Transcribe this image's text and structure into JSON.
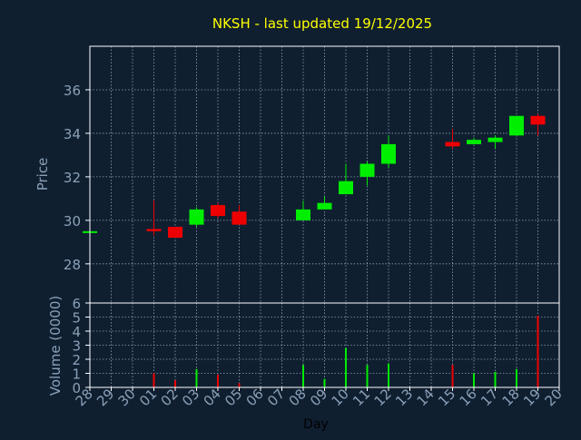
{
  "chart_data": {
    "type": "candlestick",
    "title": "NKSH - last updated 19/12/2025",
    "xlabel": "Day",
    "colors": {
      "background": "#0f1f30",
      "title": "#ffff00",
      "axis_text": "#8aa0b8",
      "frame": "#ffffff",
      "up": "#00ee00",
      "down": "#ee0000"
    },
    "categories": [
      "28",
      "29",
      "30",
      "01",
      "02",
      "03",
      "04",
      "05",
      "06",
      "07",
      "08",
      "09",
      "10",
      "11",
      "12",
      "13",
      "14",
      "15",
      "16",
      "17",
      "18",
      "19",
      "20"
    ],
    "price_panel": {
      "ylabel": "Price",
      "ylim": [
        26.2,
        38
      ],
      "yticks": [
        28,
        30,
        32,
        34,
        36
      ],
      "grid": true,
      "candles": [
        {
          "day": "28",
          "open": 29.5,
          "high": 29.5,
          "low": 29.5,
          "close": 29.5
        },
        {
          "day": "01",
          "open": 29.6,
          "high": 30.9,
          "low": 29.3,
          "close": 29.5
        },
        {
          "day": "02",
          "open": 29.7,
          "high": 29.7,
          "low": 29.2,
          "close": 29.2
        },
        {
          "day": "03",
          "open": 29.8,
          "high": 30.6,
          "low": 29.7,
          "close": 30.5
        },
        {
          "day": "04",
          "open": 30.7,
          "high": 30.8,
          "low": 30.1,
          "close": 30.2
        },
        {
          "day": "05",
          "open": 30.4,
          "high": 30.7,
          "low": 29.8,
          "close": 29.8
        },
        {
          "day": "08",
          "open": 30.0,
          "high": 30.9,
          "low": 30.0,
          "close": 30.5
        },
        {
          "day": "09",
          "open": 30.5,
          "high": 31.1,
          "low": 30.5,
          "close": 30.8
        },
        {
          "day": "10",
          "open": 31.2,
          "high": 32.6,
          "low": 31.2,
          "close": 31.8
        },
        {
          "day": "11",
          "open": 32.0,
          "high": 32.7,
          "low": 31.6,
          "close": 32.6
        },
        {
          "day": "12",
          "open": 32.6,
          "high": 33.9,
          "low": 32.4,
          "close": 33.5
        },
        {
          "day": "15",
          "open": 33.6,
          "high": 34.2,
          "low": 33.3,
          "close": 33.4
        },
        {
          "day": "16",
          "open": 33.5,
          "high": 33.8,
          "low": 33.5,
          "close": 33.7
        },
        {
          "day": "17",
          "open": 33.6,
          "high": 33.9,
          "low": 33.3,
          "close": 33.8
        },
        {
          "day": "18",
          "open": 33.9,
          "high": 34.8,
          "low": 33.9,
          "close": 34.8
        },
        {
          "day": "19",
          "open": 34.8,
          "high": 34.9,
          "low": 33.9,
          "close": 34.4
        }
      ]
    },
    "volume_panel": {
      "ylabel": "Volume (0000)",
      "ylim": [
        0,
        6
      ],
      "yticks": [
        0,
        1,
        2,
        3,
        4,
        5,
        6
      ],
      "grid": true,
      "bars": [
        {
          "day": "01",
          "value": 1.0,
          "direction": "down"
        },
        {
          "day": "02",
          "value": 0.5,
          "direction": "down"
        },
        {
          "day": "03",
          "value": 1.3,
          "direction": "up"
        },
        {
          "day": "04",
          "value": 0.9,
          "direction": "down"
        },
        {
          "day": "05",
          "value": 0.3,
          "direction": "down"
        },
        {
          "day": "08",
          "value": 1.6,
          "direction": "up"
        },
        {
          "day": "09",
          "value": 0.6,
          "direction": "up"
        },
        {
          "day": "10",
          "value": 2.8,
          "direction": "up"
        },
        {
          "day": "11",
          "value": 1.6,
          "direction": "up"
        },
        {
          "day": "12",
          "value": 1.7,
          "direction": "up"
        },
        {
          "day": "15",
          "value": 1.6,
          "direction": "down"
        },
        {
          "day": "16",
          "value": 1.0,
          "direction": "up"
        },
        {
          "day": "17",
          "value": 1.1,
          "direction": "up"
        },
        {
          "day": "18",
          "value": 1.3,
          "direction": "up"
        },
        {
          "day": "19",
          "value": 5.1,
          "direction": "down"
        }
      ]
    }
  }
}
